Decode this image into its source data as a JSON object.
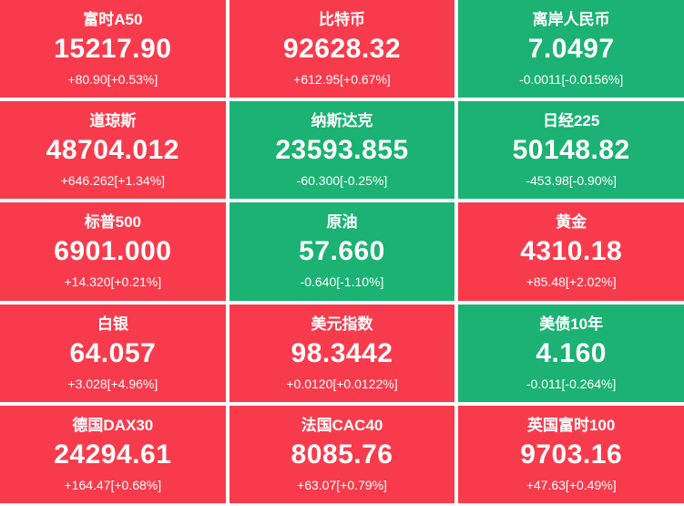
{
  "colors": {
    "up_bg": "#f83b4c",
    "down_bg": "#1bb273",
    "text": "#ffffff"
  },
  "tiles": [
    {
      "name": "富时A50",
      "value": "15217.90",
      "change": "+80.90[+0.53%]",
      "trend": "up"
    },
    {
      "name": "比特币",
      "value": "92628.32",
      "change": "+612.95[+0.67%]",
      "trend": "up"
    },
    {
      "name": "离岸人民币",
      "value": "7.0497",
      "change": "-0.0011[-0.0156%]",
      "trend": "down"
    },
    {
      "name": "道琼斯",
      "value": "48704.012",
      "change": "+646.262[+1.34%]",
      "trend": "up"
    },
    {
      "name": "纳斯达克",
      "value": "23593.855",
      "change": "-60.300[-0.25%]",
      "trend": "down"
    },
    {
      "name": "日经225",
      "value": "50148.82",
      "change": "-453.98[-0.90%]",
      "trend": "down"
    },
    {
      "name": "标普500",
      "value": "6901.000",
      "change": "+14.320[+0.21%]",
      "trend": "up"
    },
    {
      "name": "原油",
      "value": "57.660",
      "change": "-0.640[-1.10%]",
      "trend": "down"
    },
    {
      "name": "黄金",
      "value": "4310.18",
      "change": "+85.48[+2.02%]",
      "trend": "up"
    },
    {
      "name": "白银",
      "value": "64.057",
      "change": "+3.028[+4.96%]",
      "trend": "up"
    },
    {
      "name": "美元指数",
      "value": "98.3442",
      "change": "+0.0120[+0.0122%]",
      "trend": "up"
    },
    {
      "name": "美债10年",
      "value": "4.160",
      "change": "-0.011[-0.264%]",
      "trend": "down"
    },
    {
      "name": "德国DAX30",
      "value": "24294.61",
      "change": "+164.47[+0.68%]",
      "trend": "up"
    },
    {
      "name": "法国CAC40",
      "value": "8085.76",
      "change": "+63.07[+0.79%]",
      "trend": "up"
    },
    {
      "name": "英国富时100",
      "value": "9703.16",
      "change": "+47.63[+0.49%]",
      "trend": "up"
    }
  ]
}
